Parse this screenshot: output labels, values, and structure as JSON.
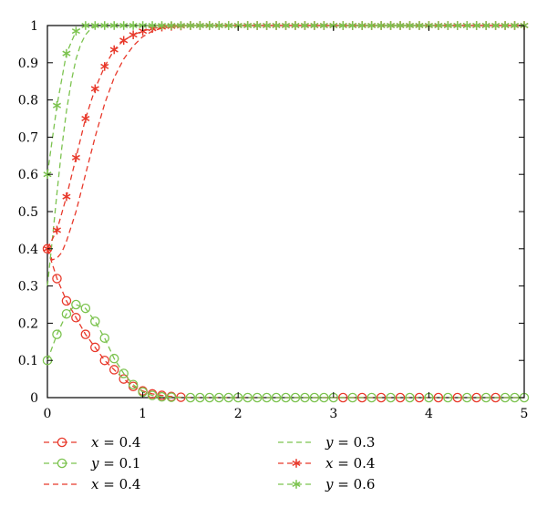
{
  "chart_data": {
    "type": "line",
    "xlim": [
      0,
      5
    ],
    "ylim": [
      0,
      1
    ],
    "xticks": [
      "0",
      "1",
      "2",
      "3",
      "4",
      "5"
    ],
    "yticks": [
      "0",
      "0.1",
      "0.2",
      "0.3",
      "0.4",
      "0.5",
      "0.6",
      "0.7",
      "0.8",
      "0.9",
      "1"
    ],
    "grid": false,
    "legend_position": "bottom",
    "colors": {
      "red": "#e8392b",
      "green": "#7cc34f"
    },
    "series": [
      {
        "name": "x = 0.4",
        "var": "x",
        "val": "0.4",
        "color": "#e8392b",
        "style": "dashed",
        "marker": "circle",
        "x": [
          0,
          0.1,
          0.2,
          0.3,
          0.4,
          0.5,
          0.6,
          0.7,
          0.8,
          0.9,
          1.0,
          1.1,
          1.2,
          1.3,
          1.4,
          1.6,
          2.0,
          2.5,
          3.0,
          3.5,
          4.0,
          4.5,
          5.0
        ],
        "y": [
          0.4,
          0.32,
          0.26,
          0.215,
          0.17,
          0.135,
          0.1,
          0.075,
          0.05,
          0.03,
          0.018,
          0.01,
          0.006,
          0.003,
          0.001,
          0,
          0,
          0,
          0,
          0,
          0,
          0,
          0
        ]
      },
      {
        "name": "y = 0.1",
        "var": "y",
        "val": "0.1",
        "color": "#7cc34f",
        "style": "dashed",
        "marker": "circle",
        "x": [
          0,
          0.1,
          0.2,
          0.3,
          0.4,
          0.5,
          0.6,
          0.7,
          0.8,
          0.9,
          1.0,
          1.1,
          1.2,
          1.3,
          1.5,
          2.0,
          2.5,
          3.0,
          3.5,
          4.0,
          4.5,
          5.0
        ],
        "y": [
          0.1,
          0.17,
          0.225,
          0.25,
          0.24,
          0.205,
          0.16,
          0.105,
          0.065,
          0.035,
          0.015,
          0.006,
          0.002,
          0.001,
          0,
          0,
          0,
          0,
          0,
          0,
          0,
          0
        ]
      },
      {
        "name": "x = 0.4",
        "var": "x",
        "val": "0.4",
        "color": "#e8392b",
        "style": "dashed",
        "marker": "none",
        "x": [
          0,
          0.05,
          0.1,
          0.15,
          0.2,
          0.3,
          0.4,
          0.5,
          0.6,
          0.7,
          0.8,
          0.9,
          1.0,
          1.1,
          1.2,
          1.3,
          1.5,
          2.0,
          5.0
        ],
        "y": [
          0.4,
          0.37,
          0.375,
          0.39,
          0.42,
          0.5,
          0.6,
          0.7,
          0.79,
          0.86,
          0.91,
          0.945,
          0.97,
          0.985,
          0.993,
          0.997,
          1.0,
          1.0,
          1.0
        ]
      },
      {
        "name": "y = 0.3",
        "var": "y",
        "val": "0.3",
        "color": "#7cc34f",
        "style": "dashed",
        "marker": "none",
        "x": [
          0,
          0.05,
          0.1,
          0.15,
          0.2,
          0.25,
          0.3,
          0.35,
          0.4,
          0.45,
          0.5,
          0.6,
          1.0,
          5.0
        ],
        "y": [
          0.3,
          0.42,
          0.55,
          0.67,
          0.77,
          0.85,
          0.91,
          0.95,
          0.975,
          0.99,
          0.997,
          1.0,
          1.0,
          1.0
        ]
      },
      {
        "name": "x = 0.4",
        "var": "x",
        "val": "0.4",
        "color": "#e8392b",
        "style": "dashed",
        "marker": "asterisk",
        "x": [
          0,
          0.1,
          0.2,
          0.3,
          0.4,
          0.5,
          0.6,
          0.7,
          0.8,
          0.9,
          1.0,
          1.1,
          1.2,
          1.3,
          1.4,
          1.5,
          1.6,
          1.7,
          1.8,
          1.9,
          2.0,
          2.1,
          2.2,
          2.3,
          2.4,
          2.5,
          2.6,
          2.7,
          2.8,
          2.9,
          3.0,
          3.1,
          3.2,
          3.3,
          3.4,
          3.5,
          3.6,
          3.7,
          3.8,
          3.9,
          4.0,
          4.1,
          4.2,
          4.3,
          4.4,
          4.5,
          4.6,
          4.7,
          4.8,
          4.9,
          5.0
        ],
        "y": [
          0.4,
          0.45,
          0.54,
          0.645,
          0.75,
          0.83,
          0.89,
          0.935,
          0.96,
          0.975,
          0.985,
          0.992,
          0.996,
          0.998,
          0.999,
          1.0,
          1.0,
          1.0,
          1.0,
          1.0,
          1.0,
          1.0,
          1.0,
          1.0,
          1.0,
          1.0,
          1.0,
          1.0,
          1.0,
          1.0,
          1.0,
          1.0,
          1.0,
          1.0,
          1.0,
          1.0,
          1.0,
          1.0,
          1.0,
          1.0,
          1.0,
          1.0,
          1.0,
          1.0,
          1.0,
          1.0,
          1.0,
          1.0,
          1.0,
          1.0,
          1.0
        ]
      },
      {
        "name": "y = 0.6",
        "var": "y",
        "val": "0.6",
        "color": "#7cc34f",
        "style": "dashed",
        "marker": "asterisk",
        "x": [
          0,
          0.1,
          0.2,
          0.3,
          0.4,
          0.5,
          0.6,
          0.7,
          0.8,
          0.9,
          1.0,
          1.1,
          1.2,
          1.3,
          1.4,
          1.5,
          1.6,
          1.7,
          1.8,
          1.9,
          2.0,
          2.1,
          2.2,
          2.3,
          2.4,
          2.5,
          2.6,
          2.7,
          2.8,
          2.9,
          3.0,
          3.1,
          3.2,
          3.3,
          3.4,
          3.5,
          3.6,
          3.7,
          3.8,
          3.9,
          4.0,
          4.1,
          4.2,
          4.3,
          4.4,
          4.5,
          4.6,
          4.7,
          4.8,
          4.9,
          5.0
        ],
        "y": [
          0.6,
          0.785,
          0.925,
          0.985,
          1.0,
          1.0,
          1.0,
          1.0,
          1.0,
          1.0,
          1.0,
          1.0,
          1.0,
          1.0,
          1.0,
          1.0,
          1.0,
          1.0,
          1.0,
          1.0,
          1.0,
          1.0,
          1.0,
          1.0,
          1.0,
          1.0,
          1.0,
          1.0,
          1.0,
          1.0,
          1.0,
          1.0,
          1.0,
          1.0,
          1.0,
          1.0,
          1.0,
          1.0,
          1.0,
          1.0,
          1.0,
          1.0,
          1.0,
          1.0,
          1.0,
          1.0,
          1.0,
          1.0,
          1.0,
          1.0,
          1.0
        ]
      }
    ],
    "flat_circle_markers": {
      "x": [
        1.5,
        1.6,
        1.7,
        1.8,
        1.9,
        2.0,
        2.1,
        2.2,
        2.3,
        2.4,
        2.5,
        2.6,
        2.7,
        2.8,
        2.9,
        3.0,
        3.1,
        3.2,
        3.3,
        3.4,
        3.5,
        3.6,
        3.7,
        3.8,
        3.9,
        4.0,
        4.1,
        4.2,
        4.3,
        4.4,
        4.5,
        4.6,
        4.7,
        4.8,
        4.9,
        5.0
      ]
    }
  }
}
